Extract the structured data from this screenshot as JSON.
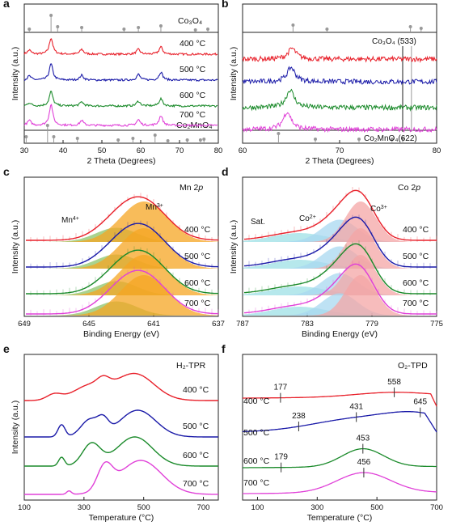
{
  "colors": {
    "400 °C": "#e8202a",
    "500 °C": "#1a1aa8",
    "600 °C": "#1a8a2a",
    "700 °C": "#e040d8",
    "reference": "#888888",
    "Mn4+_fill": "#8cc46a",
    "Mn3+_fill": "#f5a623",
    "Sat_fill": "#9ee0e6",
    "Co2+_fill": "#a8d8f0",
    "Co3+_fill": "#f4a6a6"
  },
  "chart_data": [
    {
      "id": "a",
      "panel_label": "a",
      "type": "line",
      "xlabel": "2 Theta (Degrees)",
      "ylabel": "Intensity (a.u.)",
      "xlim": [
        30,
        80
      ],
      "xticks": [
        30,
        40,
        50,
        60,
        70,
        80
      ],
      "curve_labels": [
        "400 °C",
        "500 °C",
        "600 °C",
        "700 °C"
      ],
      "references": [
        {
          "name": "Co3O4",
          "label_text": "Co₃O₄",
          "peaks": [
            31.3,
            36.9,
            38.6,
            44.8,
            55.7,
            59.4,
            65.2,
            74.1,
            77.3
          ]
        },
        {
          "name": "Co2MnO4",
          "label_text": "Co₂MnO₄",
          "peaks": [
            30.5,
            36.0,
            37.6,
            43.7,
            54.2,
            58.0,
            63.7,
            67.0,
            72.0,
            75.4,
            76.3
          ]
        }
      ],
      "series": [
        {
          "name": "400 °C",
          "peaks": [
            [
              36.9,
              1.0
            ],
            [
              31.3,
              0.25
            ],
            [
              44.8,
              0.3
            ],
            [
              59.4,
              0.3
            ],
            [
              65.2,
              0.45
            ]
          ]
        },
        {
          "name": "500 °C",
          "peaks": [
            [
              36.9,
              1.0
            ],
            [
              31.3,
              0.25
            ],
            [
              44.8,
              0.3
            ],
            [
              59.4,
              0.35
            ],
            [
              65.2,
              0.5
            ]
          ]
        },
        {
          "name": "600 °C",
          "peaks": [
            [
              36.9,
              0.9
            ],
            [
              31.3,
              0.2
            ],
            [
              44.8,
              0.25
            ],
            [
              59.4,
              0.3
            ],
            [
              65.2,
              0.45
            ]
          ]
        },
        {
          "name": "700 °C",
          "peaks": [
            [
              36.9,
              1.3
            ],
            [
              31.3,
              0.3
            ],
            [
              44.8,
              0.3
            ],
            [
              59.4,
              0.35
            ],
            [
              65.2,
              0.6
            ]
          ]
        }
      ]
    },
    {
      "id": "b",
      "panel_label": "b",
      "type": "line",
      "xlabel": "2 Theta (Degrees)",
      "ylabel": "Intensity (a.u.)",
      "xlim": [
        60,
        80
      ],
      "xticks": [
        60,
        70,
        80
      ],
      "annotations": [
        {
          "text": "Co₃O₄ (533)",
          "x": 77.4
        },
        {
          "text": "Co₂MnO₄(622)",
          "x": 76.5
        }
      ],
      "references": [
        {
          "name": "Co3O4",
          "peaks": [
            65.2,
            68.7,
            77.3,
            78.4
          ]
        },
        {
          "name": "Co2MnO4",
          "peaks": [
            63.7,
            67.5,
            72.0,
            75.4,
            76.5
          ]
        }
      ],
      "series": [
        {
          "name": "400 °C",
          "peak": [
            65.1,
            0.6
          ]
        },
        {
          "name": "500 °C",
          "peak": [
            65.0,
            0.8
          ]
        },
        {
          "name": "600 °C",
          "peak": [
            64.9,
            1.0
          ]
        },
        {
          "name": "700 °C",
          "peak": [
            64.6,
            1.0
          ]
        }
      ]
    },
    {
      "id": "c",
      "panel_label": "c",
      "type": "area",
      "title": "Mn 2",
      "title_italic": "p",
      "xlabel": "Binding Energy (eV)",
      "ylabel": "Intensity (a.u.)",
      "xlim": [
        649,
        637
      ],
      "xticks": [
        649,
        645,
        641,
        637
      ],
      "components": [
        {
          "name": "Mn4+",
          "base": "Mn",
          "sup": "4+",
          "center": 643.3,
          "fwhm": 3.0,
          "amp": 0.35
        },
        {
          "name": "Mn3+",
          "base": "Mn",
          "sup": "3+",
          "center": 641.6,
          "fwhm": 3.4,
          "amp": 1.0
        }
      ],
      "curve_labels": [
        "400 °C",
        "500 °C",
        "600 °C",
        "700 °C"
      ]
    },
    {
      "id": "d",
      "panel_label": "d",
      "type": "area",
      "title": "Co 2",
      "title_italic": "p",
      "xlabel": "Binding Energy (eV)",
      "ylabel": "Intensity (a.u.)",
      "xlim": [
        787,
        775
      ],
      "xticks": [
        787,
        783,
        779,
        775
      ],
      "components": [
        {
          "name": "Sat.",
          "base": "Sat.",
          "sup": "",
          "center": 783.5,
          "fwhm": 4.0,
          "amp": 0.22
        },
        {
          "name": "Co2+",
          "base": "Co",
          "sup": "2+",
          "center": 781.0,
          "fwhm": 2.6,
          "amp": 0.55
        },
        {
          "name": "Co3+",
          "base": "Co",
          "sup": "3+",
          "center": 779.7,
          "fwhm": 2.2,
          "amp": 1.0
        }
      ],
      "curve_labels": [
        "400 °C",
        "500 °C",
        "600 °C",
        "700 °C"
      ]
    },
    {
      "id": "e",
      "panel_label": "e",
      "type": "line",
      "title": "H₂-TPR",
      "xlabel": "Temperature (°C)",
      "ylabel": "Intensity (a.u.)",
      "xlim": [
        100,
        750
      ],
      "xticks": [
        100,
        300,
        500,
        700
      ],
      "series": [
        {
          "name": "400 °C",
          "peaks": [
            [
              200,
              0.12,
              25
            ],
            [
              320,
              0.3,
              55
            ],
            [
              365,
              0.15,
              20
            ],
            [
              470,
              0.55,
              65
            ]
          ]
        },
        {
          "name": "500 °C",
          "peaks": [
            [
              225,
              0.25,
              12
            ],
            [
              320,
              0.35,
              30
            ],
            [
              365,
              0.25,
              18
            ],
            [
              480,
              0.55,
              60
            ]
          ]
        },
        {
          "name": "600 °C",
          "peaks": [
            [
              225,
              0.18,
              10
            ],
            [
              325,
              0.45,
              30
            ],
            [
              470,
              0.6,
              60
            ]
          ]
        },
        {
          "name": "700 °C",
          "peaks": [
            [
              250,
              0.07,
              8
            ],
            [
              370,
              0.5,
              25
            ],
            [
              490,
              0.7,
              70
            ]
          ]
        }
      ]
    },
    {
      "id": "f",
      "panel_label": "f",
      "type": "line",
      "title": "O₂-TPD",
      "xlabel": "Temperature (°C)",
      "xlim": [
        50,
        700
      ],
      "xticks": [
        100,
        300,
        500,
        700
      ],
      "series": [
        {
          "name": "400 °C",
          "peak_labels": [
            177,
            558
          ],
          "peaks": [
            [
              558,
              0.12,
              130
            ]
          ]
        },
        {
          "name": "500 °C",
          "peak_labels": [
            238,
            431,
            645
          ],
          "peaks": [
            [
              431,
              0.3,
              150
            ],
            [
              645,
              0.35,
              110
            ]
          ]
        },
        {
          "name": "600 °C",
          "peak_labels": [
            179,
            453
          ],
          "peaks": [
            [
              453,
              0.45,
              70
            ]
          ]
        },
        {
          "name": "700 °C",
          "peak_labels": [
            456
          ],
          "peaks": [
            [
              456,
              0.5,
              90
            ]
          ]
        }
      ]
    }
  ]
}
